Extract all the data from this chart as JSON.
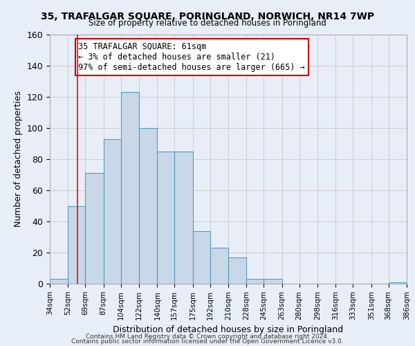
{
  "title": "35, TRAFALGAR SQUARE, PORINGLAND, NORWICH, NR14 7WP",
  "subtitle": "Size of property relative to detached houses in Poringland",
  "xlabel": "Distribution of detached houses by size in Poringland",
  "ylabel": "Number of detached properties",
  "bar_color": "#c8d8e8",
  "bar_edge_color": "#5599bb",
  "bg_color": "#e8eef8",
  "grid_color": "#cccccc",
  "bin_edges": [
    34,
    52,
    69,
    87,
    104,
    122,
    140,
    157,
    175,
    192,
    210,
    228,
    245,
    263,
    280,
    298,
    316,
    333,
    351,
    368,
    386
  ],
  "bin_labels": [
    "34sqm",
    "52sqm",
    "69sqm",
    "87sqm",
    "104sqm",
    "122sqm",
    "140sqm",
    "157sqm",
    "175sqm",
    "192sqm",
    "210sqm",
    "228sqm",
    "245sqm",
    "263sqm",
    "280sqm",
    "298sqm",
    "316sqm",
    "333sqm",
    "351sqm",
    "368sqm",
    "386sqm"
  ],
  "bar_heights": [
    3,
    50,
    71,
    93,
    123,
    100,
    85,
    85,
    34,
    23,
    17,
    3,
    3,
    0,
    0,
    0,
    0,
    0,
    0,
    1
  ],
  "ylim": [
    0,
    160
  ],
  "yticks": [
    0,
    20,
    40,
    60,
    80,
    100,
    120,
    140,
    160
  ],
  "red_line_x": 61,
  "annotation_title": "35 TRAFALGAR SQUARE: 61sqm",
  "annotation_line1": "← 3% of detached houses are smaller (21)",
  "annotation_line2": "97% of semi-detached houses are larger (665) →",
  "annotation_box_color": "#ffffff",
  "annotation_border_color": "#cc0000",
  "footer1": "Contains HM Land Registry data © Crown copyright and database right 2024.",
  "footer2": "Contains public sector information licensed under the Open Government Licence v3.0."
}
